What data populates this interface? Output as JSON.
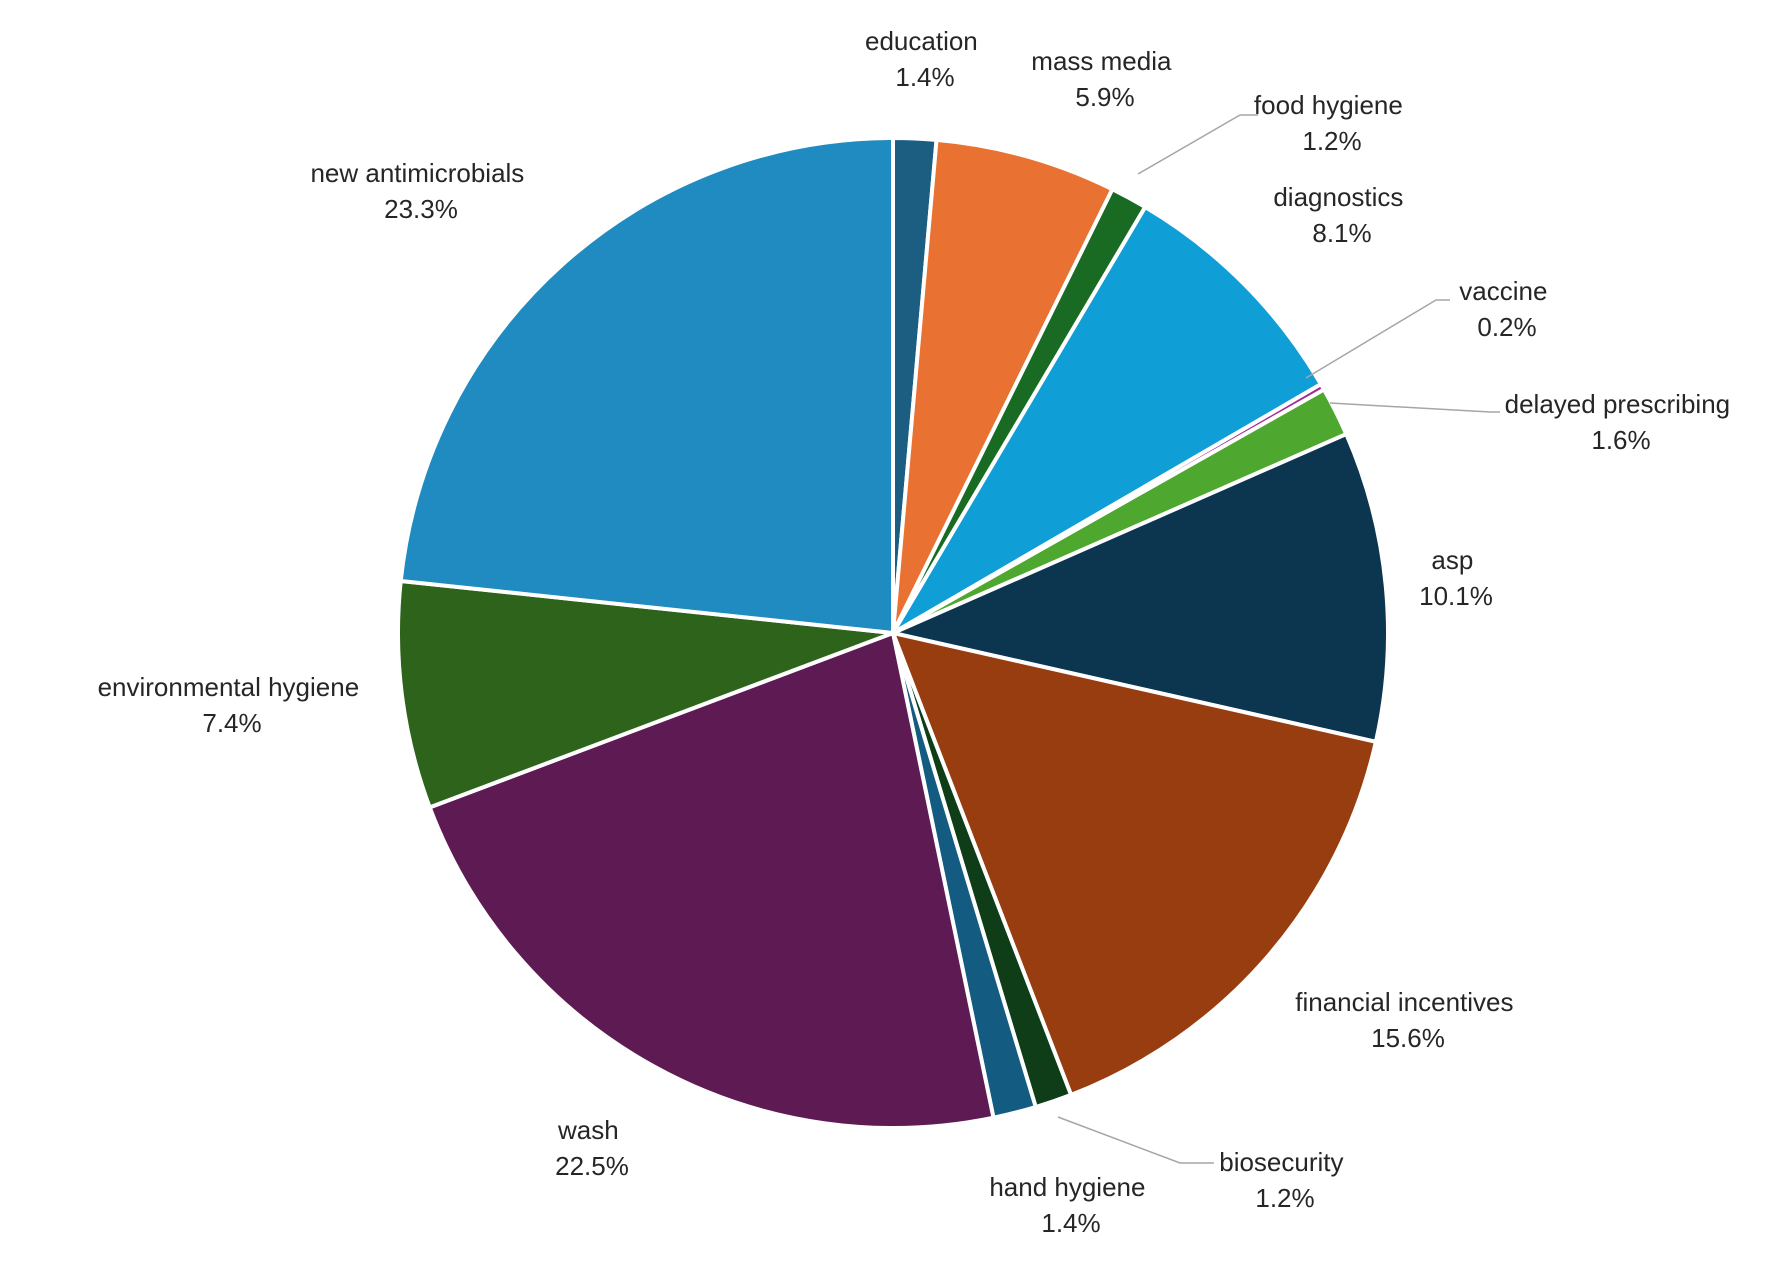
{
  "chart_data": {
    "type": "pie",
    "title": "",
    "start": "12 o'clock, clockwise",
    "slices": [
      {
        "label": "education",
        "value_label": "1.4%",
        "value": 1.4,
        "color": "#1b5e82"
      },
      {
        "label": "mass media",
        "value_label": "5.9%",
        "value": 5.9,
        "color": "#e97132"
      },
      {
        "label": "food hygiene",
        "value_label": "1.2%",
        "value": 1.2,
        "color": "#196b24"
      },
      {
        "label": "diagnostics",
        "value_label": "8.1%",
        "value": 8.1,
        "color": "#0f9ed5"
      },
      {
        "label": "vaccine",
        "value_label": "0.2%",
        "value": 0.2,
        "color": "#a02b93"
      },
      {
        "label": "delayed prescribing",
        "value_label": "1.6%",
        "value": 1.6,
        "color": "#4ea72e"
      },
      {
        "label": "asp",
        "value_label": "10.1%",
        "value": 10.1,
        "color": "#0c3650"
      },
      {
        "label": "financial incentives",
        "value_label": "15.6%",
        "value": 15.6,
        "color": "#983d10"
      },
      {
        "label": "biosecurity",
        "value_label": "1.2%",
        "value": 1.2,
        "color": "#0f3d17"
      },
      {
        "label": "hand hygiene",
        "value_label": "1.4%",
        "value": 1.4,
        "color": "#135b80"
      },
      {
        "label": "wash",
        "value_label": "22.5%",
        "value": 22.5,
        "color": "#5e1a53"
      },
      {
        "label": "environmental hygiene",
        "value_label": "7.4%",
        "value": 7.4,
        "color": "#2e631c"
      },
      {
        "label": "new antimicrobials",
        "value_label": "23.3%",
        "value": 23.3,
        "color": "#1f8bc0"
      }
    ]
  }
}
